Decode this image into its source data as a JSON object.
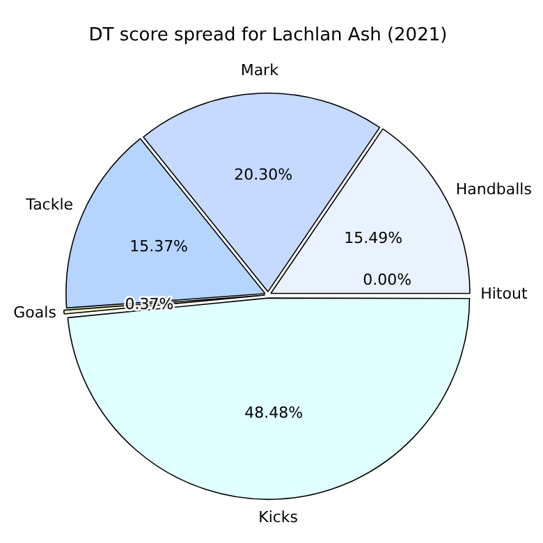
{
  "chart_data": {
    "type": "pie",
    "title": "DT score spread for Lachlan Ash (2021)",
    "categories": [
      "Kicks",
      "Goals",
      "Tackle",
      "Mark",
      "Handballs",
      "Hitout"
    ],
    "values": [
      48.48,
      0.37,
      15.37,
      20.3,
      15.49,
      0.0
    ],
    "colors": [
      "#e0ffff",
      "#f0f8c8",
      "#b5d5ff",
      "#c6d9ff",
      "#eaf2ff",
      "#ffffff"
    ],
    "value_labels": [
      "48.48%",
      "0.37%",
      "15.37%",
      "20.30%",
      "15.49%",
      "0.00%"
    ],
    "legend": false
  }
}
